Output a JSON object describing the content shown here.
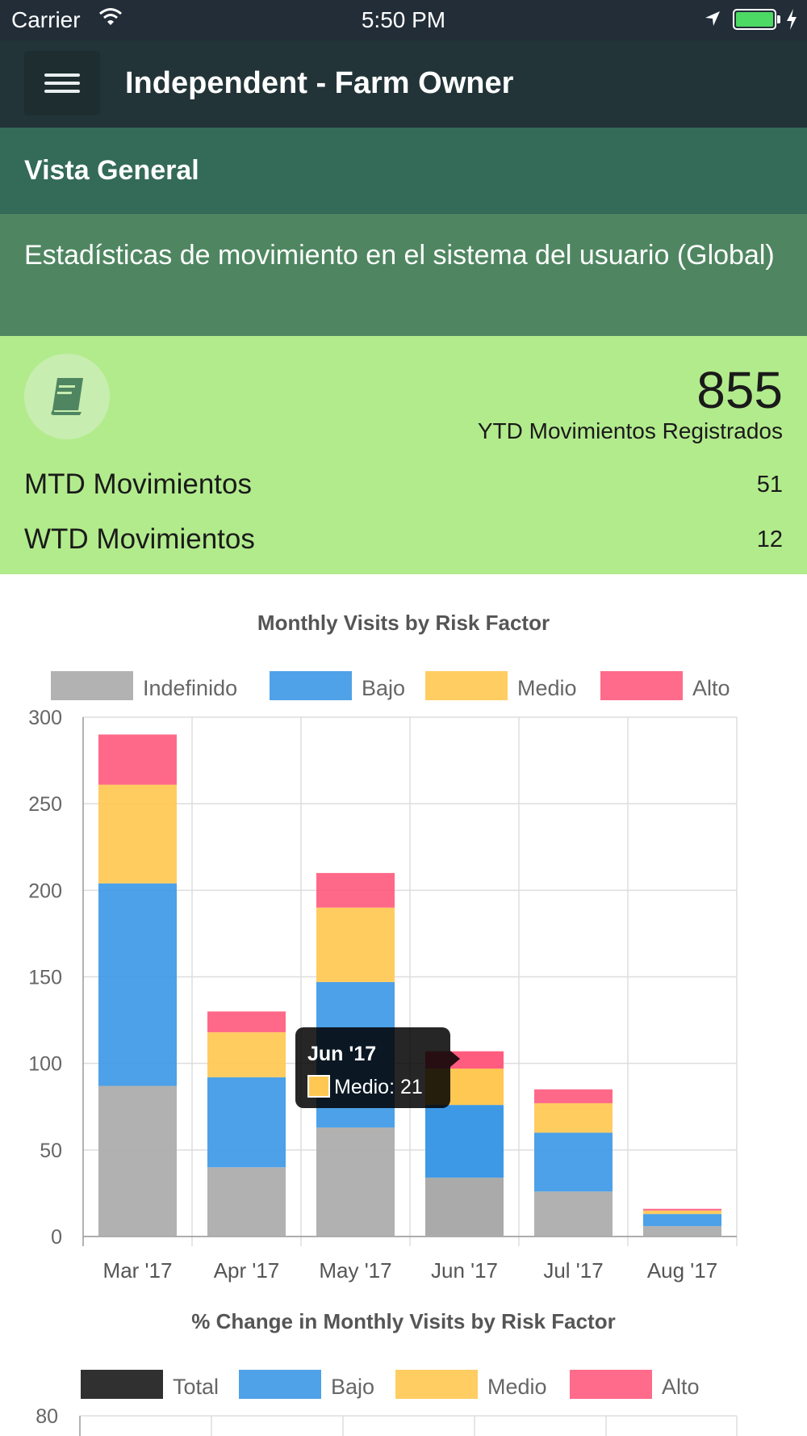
{
  "status_bar": {
    "carrier": "Carrier",
    "time": "5:50 PM"
  },
  "app_bar": {
    "title": "Independent - Farm Owner"
  },
  "section": {
    "title": "Vista General"
  },
  "description": "Estadísticas de movimiento en el sistema del usuario (Global)",
  "stats": {
    "icon": "book-icon",
    "ytd_value": "855",
    "ytd_label": "YTD Movimientos Registrados",
    "rows": [
      {
        "label": "MTD Movimientos",
        "value": "51"
      },
      {
        "label": "WTD Movimientos",
        "value": "12"
      }
    ]
  },
  "colors": {
    "indefinido": "#aaaaaa",
    "bajo": "#3d99e6",
    "medio": "#ffc852",
    "alto": "#ff5c7f",
    "total": "#1a1a1a"
  },
  "chart_data": [
    {
      "type": "bar",
      "stacked": true,
      "title": "Monthly Visits by Risk Factor",
      "categories": [
        "Mar '17",
        "Apr '17",
        "May '17",
        "Jun '17",
        "Jul '17",
        "Aug '17"
      ],
      "series": [
        {
          "name": "Indefinido",
          "values": [
            87,
            40,
            63,
            34,
            26,
            6
          ]
        },
        {
          "name": "Bajo",
          "values": [
            117,
            52,
            84,
            42,
            34,
            7
          ]
        },
        {
          "name": "Medio",
          "values": [
            57,
            26,
            43,
            21,
            17,
            2
          ]
        },
        {
          "name": "Alto",
          "values": [
            29,
            12,
            20,
            10,
            8,
            1
          ]
        }
      ],
      "ylim": [
        0,
        300
      ],
      "yticks": [
        "0",
        "50",
        "100",
        "150",
        "200",
        "250",
        "300"
      ],
      "grid": true,
      "legend_position": "top",
      "tooltip": {
        "title": "Jun '17",
        "label": "Medio: 21",
        "category_index": 3,
        "series": "Medio"
      }
    },
    {
      "type": "line",
      "title": "% Change in Monthly Visits by Risk Factor",
      "legend_position": "top",
      "series": [
        {
          "name": "Total"
        },
        {
          "name": "Bajo"
        },
        {
          "name": "Medio"
        },
        {
          "name": "Alto"
        }
      ],
      "yticks": [
        "80"
      ]
    }
  ]
}
